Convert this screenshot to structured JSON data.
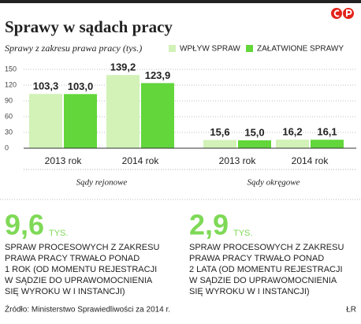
{
  "chart_data": {
    "type": "bar",
    "title": "Sprawy w sądach pracy",
    "subtitle": "Sprawy z zakresu prawa pracy (tys.)",
    "categories": [
      "2013 rok",
      "2014 rok",
      "2013 rok",
      "2014 rok"
    ],
    "groups": [
      "Sądy rejonowe",
      "Sądy okręgowe"
    ],
    "series": [
      {
        "name": "WPŁYW SPRAW",
        "color": "#d2f2b8",
        "values": [
          103.3,
          139.2,
          15.6,
          16.2
        ],
        "value_labels": [
          "103,3",
          "139,2",
          "15,6",
          "16,2"
        ]
      },
      {
        "name": "ZAŁATWIONE SPRAWY",
        "color": "#62d63a",
        "values": [
          103.0,
          123.9,
          15.0,
          16.1
        ],
        "value_labels": [
          "103,0",
          "123,9",
          "15,0",
          "16,1"
        ]
      }
    ],
    "ylim": [
      0,
      150
    ],
    "yticks": [
      0,
      30,
      60,
      90,
      120,
      150
    ],
    "grid": true
  },
  "stats": [
    {
      "value": "9,6",
      "unit": "TYS.",
      "lines": [
        "SPRAW PROCESOWYCH Z ZAKRESU",
        "PRAWA PRACY TRWAŁO PONAD",
        "1 ROK (OD MOMENTU REJESTRACJI",
        "W SĄDZIE DO UPRAWOMOCNIENIA",
        "SIĘ WYROKU W I INSTANCJI)"
      ]
    },
    {
      "value": "2,9",
      "unit": "TYS.",
      "lines": [
        "SPRAW PROCESOWYCH Z ZAKRESU",
        "PRAWA PRACY TRWAŁO PONAD",
        "2 LATA (OD MOMENTU REJESTRACJI",
        "W SĄDZIE DO UPRAWOMOCNIENIA",
        "SIĘ WYROKU W I INSTANCJI)"
      ]
    }
  ],
  "source": "Źródło: Ministerstwo Sprawiedliwości za 2014 r.",
  "author": "ŁR"
}
